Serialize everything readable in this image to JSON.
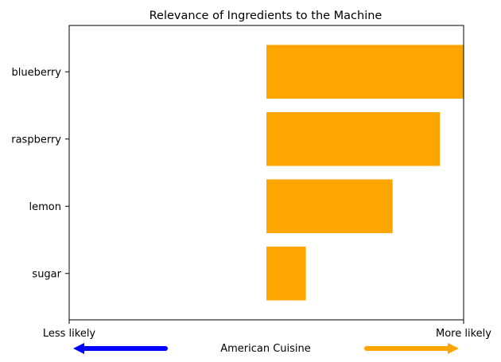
{
  "chart_data": {
    "type": "bar",
    "orientation": "horizontal",
    "title": "Relevance of Ingredients to the Machine",
    "categories": [
      "blueberry",
      "raspberry",
      "lemon",
      "sugar"
    ],
    "values": [
      0.25,
      0.22,
      0.16,
      0.05
    ],
    "xlim": [
      -0.25,
      0.25
    ],
    "bar_color": "#ffa500",
    "xticks": [
      "Less likely",
      "More likely"
    ],
    "xlabel": "American Cuisine",
    "left_arrow_color": "#0000ff",
    "right_arrow_color": "#ffa500",
    "grid": false
  }
}
